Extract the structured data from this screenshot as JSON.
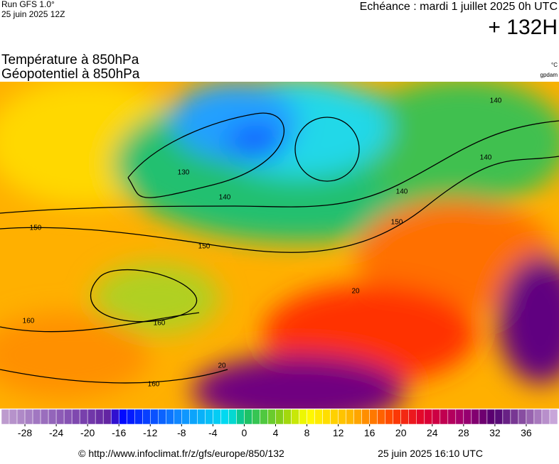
{
  "header": {
    "run": "Run GFS 1.0°",
    "run_date": "25 juin 2025 12Z",
    "valid": "Echéance : mardi 1 juillet 2025 0h UTC",
    "lead": "+ 132H"
  },
  "titles": [
    "Température à 850hPa",
    "Géopotentiel à 850hPa"
  ],
  "units": [
    "°C",
    "gpdam"
  ],
  "contour_labels": [
    "150",
    "150",
    "140",
    "140",
    "140",
    "140",
    "150",
    "130",
    "160",
    "160",
    "160",
    "20",
    "20"
  ],
  "colorbar": {
    "lim": [
      -31,
      40
    ],
    "stops": [
      {
        "value": -31,
        "color": "#c0a0d0"
      },
      {
        "value": -24,
        "color": "#9060b8"
      },
      {
        "value": -17,
        "color": "#6020a0"
      },
      {
        "value": -16,
        "color": "#0000ff"
      },
      {
        "value": -8,
        "color": "#1090ff"
      },
      {
        "value": -2,
        "color": "#00e0f0"
      },
      {
        "value": 0,
        "color": "#10c070"
      },
      {
        "value": 5,
        "color": "#90d010"
      },
      {
        "value": 8,
        "color": "#ffff00"
      },
      {
        "value": 14,
        "color": "#ffb000"
      },
      {
        "value": 19,
        "color": "#ff4000"
      },
      {
        "value": 23,
        "color": "#e00030"
      },
      {
        "value": 28,
        "color": "#a00070"
      },
      {
        "value": 32,
        "color": "#500070"
      },
      {
        "value": 40,
        "color": "#d0b0e0"
      }
    ],
    "ticks": [
      -28,
      -24,
      -20,
      -16,
      -12,
      -8,
      -4,
      0,
      4,
      8,
      12,
      16,
      20,
      24,
      28,
      32,
      36
    ]
  },
  "footer": {
    "source": "© http://www.infoclimat.fr/z/gfs/europe/850/132",
    "generated": "25 juin 2025 16:10 UTC"
  }
}
